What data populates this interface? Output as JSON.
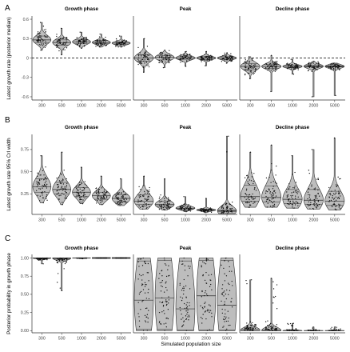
{
  "x_axis_title": "Simulated population size",
  "chart_data": [
    {
      "type": "violin",
      "panel_label": "A",
      "ylabel": "Latest growth rate (posterior median)",
      "ylim": [
        -0.65,
        0.65
      ],
      "yticks": [
        -0.6,
        -0.3,
        0.0,
        0.3,
        0.6
      ],
      "ytick_labels": [
        "-0.6",
        "-0.3",
        "0",
        "0.3",
        "0.6"
      ],
      "reference_line": 0,
      "categories": [
        "300",
        "500",
        "1000",
        "2000",
        "5000"
      ],
      "facets": [
        {
          "title": "Growth phase",
          "series": [
            {
              "category": "300",
              "min": 0.12,
              "max": 0.55,
              "quartiles": [
                0.24,
                0.28,
                0.34
              ]
            },
            {
              "category": "500",
              "min": 0.05,
              "max": 0.46,
              "quartiles": [
                0.2,
                0.24,
                0.28
              ]
            },
            {
              "category": "1000",
              "min": 0.15,
              "max": 0.4,
              "quartiles": [
                0.22,
                0.25,
                0.28
              ]
            },
            {
              "category": "2000",
              "min": 0.17,
              "max": 0.37,
              "quartiles": [
                0.22,
                0.24,
                0.27
              ]
            },
            {
              "category": "5000",
              "min": 0.17,
              "max": 0.34,
              "quartiles": [
                0.21,
                0.23,
                0.25
              ]
            }
          ]
        },
        {
          "title": "Peak",
          "series": [
            {
              "category": "300",
              "min": -0.22,
              "max": 0.3,
              "quartiles": [
                -0.05,
                0.0,
                0.05
              ]
            },
            {
              "category": "500",
              "min": -0.15,
              "max": 0.12,
              "quartiles": [
                -0.03,
                0.01,
                0.04
              ]
            },
            {
              "category": "1000",
              "min": -0.13,
              "max": 0.1,
              "quartiles": [
                -0.02,
                0.0,
                0.03
              ]
            },
            {
              "category": "2000",
              "min": -0.12,
              "max": 0.1,
              "quartiles": [
                -0.02,
                0.0,
                0.02
              ]
            },
            {
              "category": "5000",
              "min": -0.08,
              "max": 0.08,
              "quartiles": [
                -0.02,
                0.0,
                0.02
              ]
            }
          ]
        },
        {
          "title": "Decline phase",
          "series": [
            {
              "category": "300",
              "min": -0.32,
              "max": 0.02,
              "quartiles": [
                -0.18,
                -0.13,
                -0.09
              ]
            },
            {
              "category": "500",
              "min": -0.52,
              "max": 0.04,
              "quartiles": [
                -0.16,
                -0.13,
                -0.1
              ]
            },
            {
              "category": "1000",
              "min": -0.25,
              "max": -0.02,
              "quartiles": [
                -0.15,
                -0.13,
                -0.11
              ]
            },
            {
              "category": "2000",
              "min": -0.6,
              "max": -0.05,
              "quartiles": [
                -0.14,
                -0.13,
                -0.11
              ]
            },
            {
              "category": "5000",
              "min": -0.58,
              "max": -0.08,
              "quartiles": [
                -0.14,
                -0.13,
                -0.12
              ]
            }
          ]
        }
      ]
    },
    {
      "type": "violin",
      "panel_label": "B",
      "ylabel": "Latest growth rate 95% CrI width",
      "ylim": [
        0.02,
        0.92
      ],
      "yticks": [
        0.25,
        0.5,
        0.75
      ],
      "ytick_labels": [
        "0.25",
        "0.50",
        "0.75"
      ],
      "categories": [
        "300",
        "500",
        "1000",
        "2000",
        "5000"
      ],
      "facets": [
        {
          "title": "Growth phase",
          "series": [
            {
              "category": "300",
              "min": 0.15,
              "max": 0.68,
              "quartiles": [
                0.27,
                0.33,
                0.42
              ]
            },
            {
              "category": "500",
              "min": 0.13,
              "max": 0.72,
              "quartiles": [
                0.25,
                0.3,
                0.38
              ]
            },
            {
              "category": "1000",
              "min": 0.14,
              "max": 0.55,
              "quartiles": [
                0.22,
                0.27,
                0.32
              ]
            },
            {
              "category": "2000",
              "min": 0.13,
              "max": 0.45,
              "quartiles": [
                0.19,
                0.23,
                0.27
              ]
            },
            {
              "category": "5000",
              "min": 0.12,
              "max": 0.42,
              "quartiles": [
                0.16,
                0.2,
                0.24
              ]
            }
          ]
        },
        {
          "title": "Peak",
          "series": [
            {
              "category": "300",
              "min": 0.08,
              "max": 0.45,
              "quartiles": [
                0.13,
                0.17,
                0.24
              ]
            },
            {
              "category": "500",
              "min": 0.07,
              "max": 0.42,
              "quartiles": [
                0.11,
                0.13,
                0.17
              ]
            },
            {
              "category": "1000",
              "min": 0.05,
              "max": 0.22,
              "quartiles": [
                0.08,
                0.09,
                0.11
              ]
            },
            {
              "category": "2000",
              "min": 0.04,
              "max": 0.2,
              "quartiles": [
                0.06,
                0.07,
                0.08
              ]
            },
            {
              "category": "5000",
              "min": 0.03,
              "max": 0.9,
              "quartiles": [
                0.05,
                0.06,
                0.07
              ]
            }
          ]
        },
        {
          "title": "Decline phase",
          "series": [
            {
              "category": "300",
              "min": 0.1,
              "max": 0.72,
              "quartiles": [
                0.17,
                0.22,
                0.35
              ]
            },
            {
              "category": "500",
              "min": 0.1,
              "max": 0.8,
              "quartiles": [
                0.16,
                0.21,
                0.34
              ]
            },
            {
              "category": "1000",
              "min": 0.09,
              "max": 0.68,
              "quartiles": [
                0.14,
                0.19,
                0.3
              ]
            },
            {
              "category": "2000",
              "min": 0.08,
              "max": 0.75,
              "quartiles": [
                0.13,
                0.18,
                0.3
              ]
            },
            {
              "category": "5000",
              "min": 0.07,
              "max": 0.88,
              "quartiles": [
                0.12,
                0.17,
                0.28
              ]
            }
          ]
        }
      ]
    },
    {
      "type": "violin",
      "panel_label": "C",
      "ylabel": "Posterior probability in growth phase",
      "ylim": [
        -0.03,
        1.05
      ],
      "yticks": [
        0.0,
        0.25,
        0.5,
        0.75,
        1.0
      ],
      "ytick_labels": [
        "0.00",
        "0.25",
        "0.50",
        "0.75",
        "1.00"
      ],
      "categories": [
        "300",
        "500",
        "1000",
        "2000",
        "5000"
      ],
      "facets": [
        {
          "title": "Growth phase",
          "series": [
            {
              "category": "300",
              "min": 0.92,
              "max": 1.0,
              "quartiles": [
                0.985,
                1.0,
                1.0
              ]
            },
            {
              "category": "500",
              "min": 0.55,
              "max": 1.0,
              "quartiles": [
                0.99,
                1.0,
                1.0
              ]
            },
            {
              "category": "1000",
              "min": 0.99,
              "max": 1.0,
              "quartiles": [
                1.0,
                1.0,
                1.0
              ]
            },
            {
              "category": "2000",
              "min": 1.0,
              "max": 1.0,
              "quartiles": [
                1.0,
                1.0,
                1.0
              ]
            },
            {
              "category": "5000",
              "min": 1.0,
              "max": 1.0,
              "quartiles": [
                1.0,
                1.0,
                1.0
              ]
            }
          ]
        },
        {
          "title": "Peak",
          "series": [
            {
              "category": "300",
              "min": 0.0,
              "max": 1.0,
              "quartiles": [
                0.02,
                0.42,
                0.96
              ]
            },
            {
              "category": "500",
              "min": 0.0,
              "max": 1.0,
              "quartiles": [
                0.02,
                0.45,
                0.97
              ]
            },
            {
              "category": "1000",
              "min": 0.0,
              "max": 1.0,
              "quartiles": [
                0.01,
                0.3,
                0.96
              ]
            },
            {
              "category": "2000",
              "min": 0.0,
              "max": 1.0,
              "quartiles": [
                0.01,
                0.48,
                0.97
              ]
            },
            {
              "category": "5000",
              "min": 0.0,
              "max": 1.0,
              "quartiles": [
                0.01,
                0.35,
                0.97
              ]
            }
          ]
        },
        {
          "title": "Decline phase",
          "series": [
            {
              "category": "300",
              "min": 0.0,
              "max": 0.7,
              "quartiles": [
                0.0,
                0.0,
                0.02
              ]
            },
            {
              "category": "500",
              "min": 0.0,
              "max": 0.72,
              "quartiles": [
                0.0,
                0.0,
                0.01
              ]
            },
            {
              "category": "1000",
              "min": 0.0,
              "max": 0.1,
              "quartiles": [
                0.0,
                0.0,
                0.0
              ]
            },
            {
              "category": "2000",
              "min": 0.0,
              "max": 0.05,
              "quartiles": [
                0.0,
                0.0,
                0.0
              ]
            },
            {
              "category": "5000",
              "min": 0.0,
              "max": 0.05,
              "quartiles": [
                0.0,
                0.0,
                0.0
              ]
            }
          ]
        }
      ]
    }
  ]
}
